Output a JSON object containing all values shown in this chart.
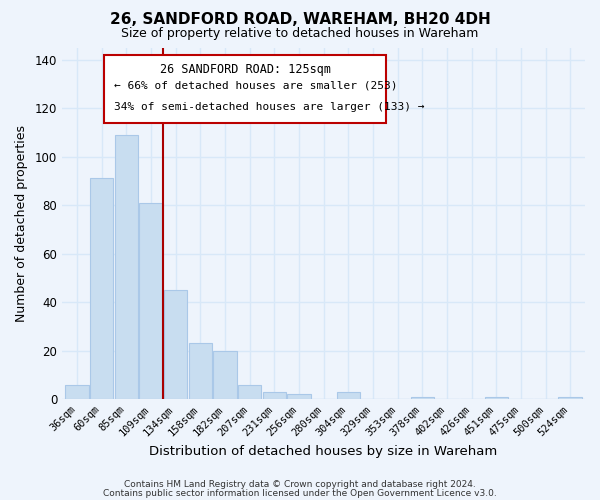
{
  "title": "26, SANDFORD ROAD, WAREHAM, BH20 4DH",
  "subtitle": "Size of property relative to detached houses in Wareham",
  "xlabel": "Distribution of detached houses by size in Wareham",
  "ylabel": "Number of detached properties",
  "bar_color": "#c8ddf0",
  "bar_edge_color": "#aac8e8",
  "vline_color": "#aa0000",
  "vline_x": 3.5,
  "categories": [
    "36sqm",
    "60sqm",
    "85sqm",
    "109sqm",
    "134sqm",
    "158sqm",
    "182sqm",
    "207sqm",
    "231sqm",
    "256sqm",
    "280sqm",
    "304sqm",
    "329sqm",
    "353sqm",
    "378sqm",
    "402sqm",
    "426sqm",
    "451sqm",
    "475sqm",
    "500sqm",
    "524sqm"
  ],
  "values": [
    6,
    91,
    109,
    81,
    45,
    23,
    20,
    6,
    3,
    2,
    0,
    3,
    0,
    0,
    1,
    0,
    0,
    1,
    0,
    0,
    1
  ],
  "ylim": [
    0,
    145
  ],
  "yticks": [
    0,
    20,
    40,
    60,
    80,
    100,
    120,
    140
  ],
  "annotation_title": "26 SANDFORD ROAD: 125sqm",
  "annotation_line1": "← 66% of detached houses are smaller (253)",
  "annotation_line2": "34% of semi-detached houses are larger (133) →",
  "box_facecolor": "#ffffff",
  "box_edgecolor": "#bb0000",
  "footer_line1": "Contains HM Land Registry data © Crown copyright and database right 2024.",
  "footer_line2": "Contains public sector information licensed under the Open Government Licence v3.0.",
  "background_color": "#eef4fc",
  "grid_color": "#d8e8f8"
}
